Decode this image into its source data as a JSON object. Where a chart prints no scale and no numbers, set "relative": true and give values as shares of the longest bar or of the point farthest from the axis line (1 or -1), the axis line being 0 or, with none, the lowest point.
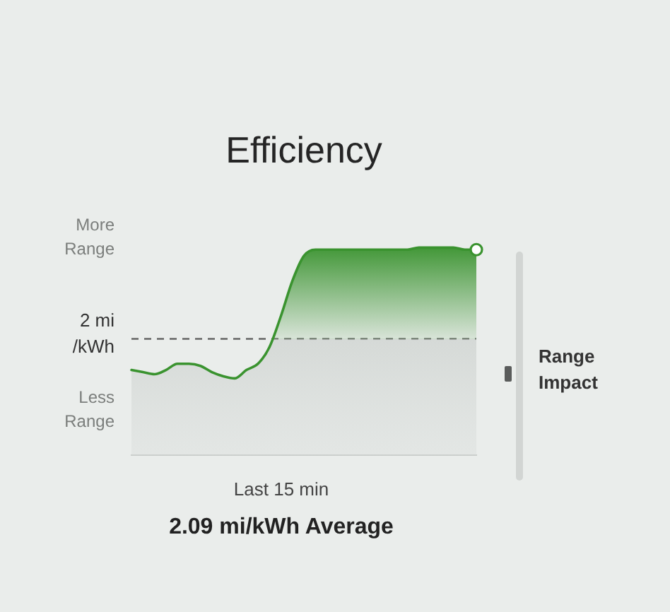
{
  "chart_data": {
    "type": "area",
    "title": "Efficiency",
    "xlabel": "Last 15 min",
    "relative": true,
    "categories": [
      null,
      null,
      null,
      null,
      null,
      null,
      null,
      null,
      null,
      null,
      null,
      null,
      null,
      null,
      null,
      null,
      null,
      null,
      null,
      null,
      null,
      null,
      null,
      null,
      null,
      null,
      null,
      null,
      null,
      null,
      null
    ],
    "series": [
      {
        "color": "#3a932f",
        "values": [
          0.41,
          0.4,
          0.39,
          0.41,
          0.44,
          0.44,
          0.43,
          0.4,
          0.38,
          0.37,
          0.41,
          0.44,
          0.52,
          0.67,
          0.84,
          0.96,
          0.99,
          0.99,
          0.99,
          0.99,
          0.99,
          0.99,
          0.99,
          0.99,
          0.99,
          1,
          1,
          1,
          1,
          0.99,
          0.99
        ]
      },
      {
        "type": "line",
        "color": "#3a932f",
        "marker": "circle",
        "values": [
          null,
          null,
          null,
          null,
          null,
          null,
          null,
          null,
          null,
          null,
          null,
          null,
          null,
          null,
          null,
          null,
          null,
          null,
          null,
          null,
          null,
          null,
          null,
          null,
          null,
          null,
          null,
          null,
          null,
          null,
          0.99
        ]
      }
    ],
    "ref_lines": [
      {
        "axis": "y",
        "value": 0.56,
        "label": "2 mi\n/kWh",
        "color": "#666666",
        "line_style": "dashed"
      }
    ],
    "annotations": [
      "More\nRange",
      "Less\nRange",
      "2.09 mi/kWh Average",
      "Range\nImpact"
    ]
  }
}
